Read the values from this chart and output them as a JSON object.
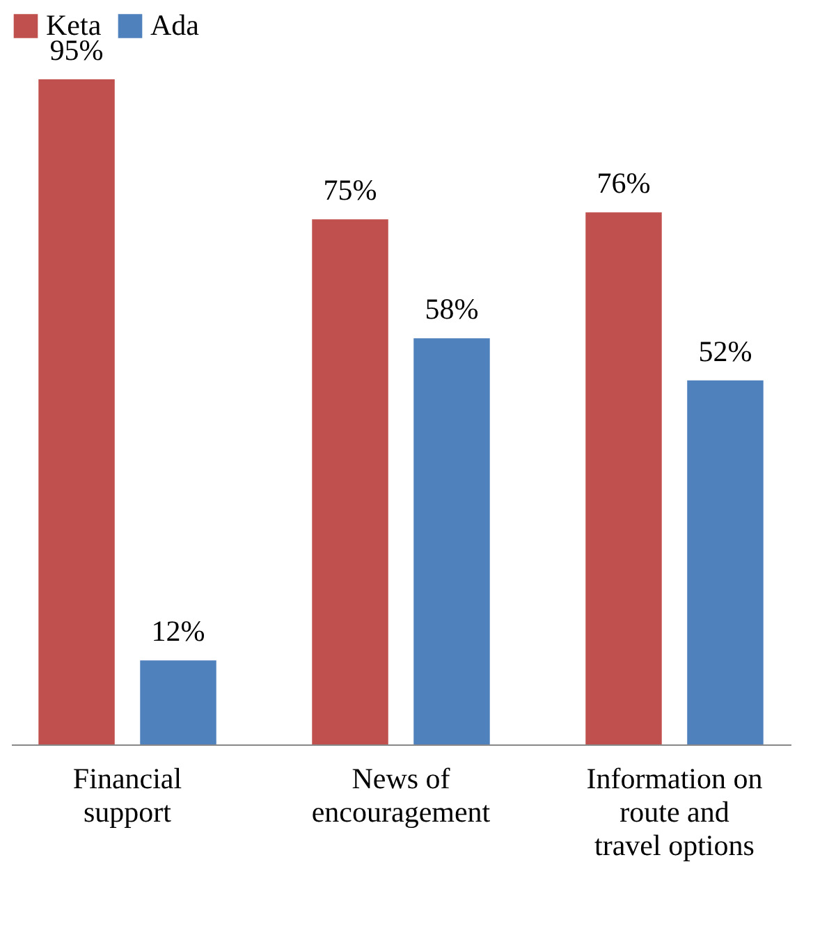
{
  "chart_data": {
    "type": "bar",
    "categories": [
      "Financial support",
      "News of encouragement",
      "Information on route and travel options"
    ],
    "series": [
      {
        "name": "Keta",
        "color": "#c0504d",
        "values": [
          95,
          75,
          76
        ],
        "value_labels": [
          "95%",
          "75%",
          "76%"
        ]
      },
      {
        "name": "Ada",
        "color": "#4f81bd",
        "values": [
          12,
          58,
          52
        ],
        "value_labels": [
          "12%",
          "58%",
          "52%"
        ]
      }
    ],
    "legend": "top",
    "grid": false
  }
}
